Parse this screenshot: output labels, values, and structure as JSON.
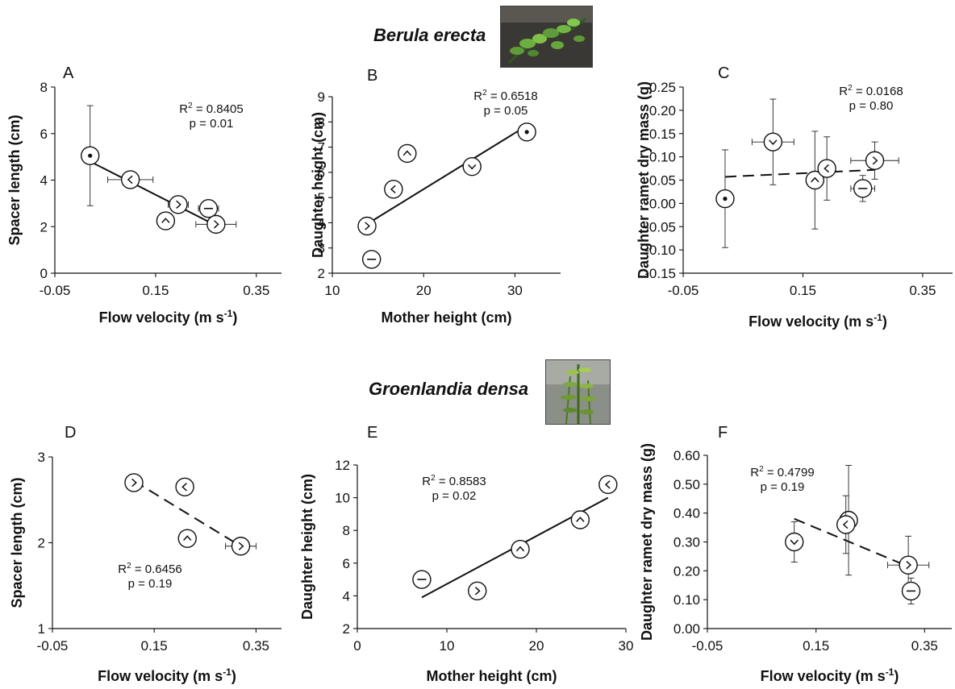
{
  "species": {
    "top": "Berula erecta",
    "bottom": "Groenlandia densa"
  },
  "chart_data": [
    {
      "panel": "A",
      "type": "scatter",
      "xlabel": "Flow velocity (m s-1)",
      "ylabel": "Spacer length (cm)",
      "xlim": [
        -0.05,
        0.4
      ],
      "ylim": [
        0,
        8
      ],
      "xticks": [
        "-0.05",
        "0.15",
        "0.35"
      ],
      "yticks": [
        "0",
        "2",
        "4",
        "6",
        "8"
      ],
      "r2": "R2 = 0.8405",
      "p": "p = 0.01",
      "points": [
        {
          "x": 0.02,
          "y": 5.05,
          "yerr": 2.15,
          "xerr": 0,
          "marker": "dot"
        },
        {
          "x": 0.1,
          "y": 4.02,
          "yerr": 0,
          "xerr": 0.045,
          "marker": "left"
        },
        {
          "x": 0.195,
          "y": 2.95,
          "yerr": 0,
          "xerr": 0.02,
          "marker": "right"
        },
        {
          "x": 0.255,
          "y": 2.78,
          "yerr": 0,
          "xerr": 0.02,
          "marker": "dash"
        },
        {
          "x": 0.17,
          "y": 2.25,
          "yerr": 0,
          "xerr": 0.012,
          "marker": "up"
        },
        {
          "x": 0.27,
          "y": 2.1,
          "yerr": 0,
          "xerr": 0.04,
          "marker": "right"
        }
      ],
      "fit": {
        "x1": 0.02,
        "y1": 4.8,
        "x2": 0.27,
        "y2": 2.05,
        "dashed": false
      }
    },
    {
      "panel": "B",
      "type": "scatter",
      "xlabel": "Mother height (cm)",
      "ylabel": "Daughter height (cm)",
      "xlim": [
        10,
        35
      ],
      "ylim": [
        2,
        9
      ],
      "xticks": [
        "10",
        "20",
        "30"
      ],
      "yticks": [
        "2",
        "3",
        "4",
        "5",
        "6",
        "7",
        "8",
        "9"
      ],
      "r2": "R2 = 0.6518",
      "p": "p = 0.05",
      "points": [
        {
          "x": 13.8,
          "y": 3.87,
          "yerr": 0,
          "xerr": 0,
          "marker": "right"
        },
        {
          "x": 14.3,
          "y": 2.55,
          "yerr": 0,
          "xerr": 0,
          "marker": "dash"
        },
        {
          "x": 16.7,
          "y": 5.33,
          "yerr": 0,
          "xerr": 0,
          "marker": "left"
        },
        {
          "x": 18.2,
          "y": 6.75,
          "yerr": 0,
          "xerr": 0,
          "marker": "up"
        },
        {
          "x": 25.3,
          "y": 6.23,
          "yerr": 0,
          "xerr": 0,
          "marker": "down"
        },
        {
          "x": 31.3,
          "y": 7.6,
          "yerr": 0,
          "xerr": 0,
          "marker": "dot"
        }
      ],
      "fit": {
        "x1": 13.8,
        "y1": 3.95,
        "x2": 31.3,
        "y2": 7.85,
        "dashed": false
      }
    },
    {
      "panel": "C",
      "type": "scatter",
      "xlabel": "Flow velocity (m s-1)",
      "ylabel": "Daughter ramet dry mass (g)",
      "xlim": [
        -0.05,
        0.4
      ],
      "ylim": [
        -0.15,
        0.25
      ],
      "xticks": [
        "-0.05",
        "0.15",
        "0.35"
      ],
      "yticks": [
        "-0.15",
        "-0.10",
        "-0.05",
        "0.00",
        "0.05",
        "0.10",
        "0.15",
        "0.20",
        "0.25"
      ],
      "r2": "R2 = 0.0168",
      "p": "p = 0.80",
      "points": [
        {
          "x": 0.02,
          "y": 0.01,
          "yerr": 0.105,
          "xerr": 0,
          "marker": "dot"
        },
        {
          "x": 0.1,
          "y": 0.132,
          "yerr": 0.092,
          "xerr": 0.035,
          "marker": "down"
        },
        {
          "x": 0.17,
          "y": 0.05,
          "yerr": 0.105,
          "xerr": 0.012,
          "marker": "up"
        },
        {
          "x": 0.19,
          "y": 0.075,
          "yerr": 0.068,
          "xerr": 0.012,
          "marker": "left"
        },
        {
          "x": 0.25,
          "y": 0.032,
          "yerr": 0.028,
          "xerr": 0.02,
          "marker": "dash"
        },
        {
          "x": 0.27,
          "y": 0.092,
          "yerr": 0.04,
          "xerr": 0.04,
          "marker": "right"
        }
      ],
      "fit": {
        "x1": 0.02,
        "y1": 0.057,
        "x2": 0.27,
        "y2": 0.072,
        "dashed": true
      }
    },
    {
      "panel": "D",
      "type": "scatter",
      "xlabel": "Flow velocity (m s-1)",
      "ylabel": "Spacer length (cm)",
      "xlim": [
        -0.05,
        0.4
      ],
      "ylim": [
        1,
        3
      ],
      "xticks": [
        "-0.05",
        "0.15",
        "0.35"
      ],
      "yticks": [
        "1",
        "2",
        "3"
      ],
      "r2": "R2 = 0.6456",
      "p": "p = 0.19",
      "points": [
        {
          "x": 0.11,
          "y": 2.7,
          "yerr": 0,
          "xerr": 0,
          "marker": "right"
        },
        {
          "x": 0.21,
          "y": 2.65,
          "yerr": 0,
          "xerr": 0,
          "marker": "left"
        },
        {
          "x": 0.215,
          "y": 2.05,
          "yerr": 0.03,
          "xerr": 0,
          "marker": "up"
        },
        {
          "x": 0.32,
          "y": 1.96,
          "yerr": 0,
          "xerr": 0.03,
          "marker": "right"
        }
      ],
      "fit": {
        "x1": 0.11,
        "y1": 2.72,
        "x2": 0.32,
        "y2": 1.96,
        "dashed": true
      }
    },
    {
      "panel": "E",
      "type": "scatter",
      "xlabel": "Mother height (cm)",
      "ylabel": "Daughter height (cm)",
      "xlim": [
        0,
        30
      ],
      "ylim": [
        2,
        12
      ],
      "xticks": [
        "0",
        "10",
        "20",
        "30"
      ],
      "yticks": [
        "2",
        "4",
        "6",
        "8",
        "10",
        "12"
      ],
      "r2": "R2 = 0.8583",
      "p": "p = 0.02",
      "points": [
        {
          "x": 7.2,
          "y": 5.0,
          "yerr": 0,
          "xerr": 0,
          "marker": "dash"
        },
        {
          "x": 13.4,
          "y": 4.3,
          "yerr": 0,
          "xerr": 0,
          "marker": "right"
        },
        {
          "x": 18.2,
          "y": 6.85,
          "yerr": 0,
          "xerr": 0,
          "marker": "up"
        },
        {
          "x": 24.9,
          "y": 8.65,
          "yerr": 0,
          "xerr": 0,
          "marker": "up"
        },
        {
          "x": 28.0,
          "y": 10.8,
          "yerr": 0,
          "xerr": 0,
          "marker": "left"
        }
      ],
      "fit": {
        "x1": 7.2,
        "y1": 3.9,
        "x2": 28.0,
        "y2": 10.0,
        "dashed": false
      }
    },
    {
      "panel": "F",
      "type": "scatter",
      "xlabel": "Flow velocity (m s-1)",
      "ylabel": "Daughter ramet dry mass (g)",
      "xlim": [
        -0.05,
        0.4
      ],
      "ylim": [
        0,
        0.6
      ],
      "xticks": [
        "-0.05",
        "0.15",
        "0.35"
      ],
      "yticks": [
        "0.00",
        "0.10",
        "0.20",
        "0.30",
        "0.40",
        "0.50",
        "0.60"
      ],
      "r2": "R2 = 0.4799",
      "p": "p = 0.19",
      "points": [
        {
          "x": 0.11,
          "y": 0.3,
          "yerr": 0.07,
          "xerr": 0,
          "marker": "down"
        },
        {
          "x": 0.21,
          "y": 0.375,
          "yerr": 0.19,
          "xerr": 0.012,
          "marker": "up"
        },
        {
          "x": 0.205,
          "y": 0.36,
          "yerr": 0.1,
          "xerr": 0.012,
          "marker": "left"
        },
        {
          "x": 0.32,
          "y": 0.22,
          "yerr": 0.1,
          "xerr": 0.038,
          "marker": "right"
        },
        {
          "x": 0.325,
          "y": 0.13,
          "yerr": 0.045,
          "xerr": 0,
          "marker": "dash"
        }
      ],
      "fit": {
        "x1": 0.11,
        "y1": 0.38,
        "x2": 0.32,
        "y2": 0.215,
        "dashed": true
      }
    }
  ]
}
